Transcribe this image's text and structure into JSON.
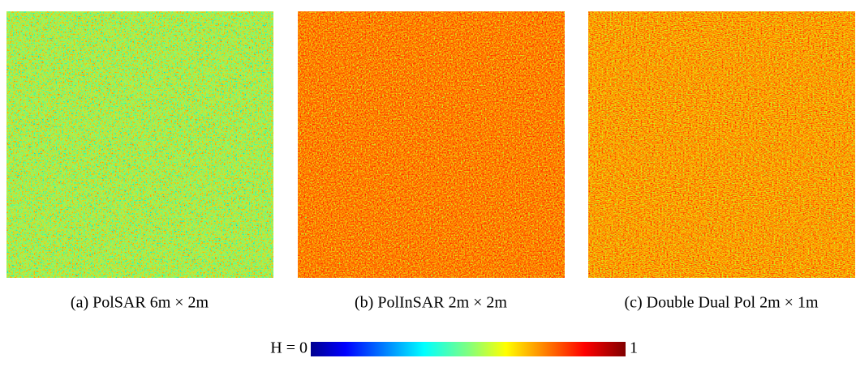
{
  "panels": [
    {
      "caption": "(a)  PolSAR 6m × 2m"
    },
    {
      "caption": "(b)  PolInSAR 2m × 2m"
    },
    {
      "caption": "(c)  Double Dual Pol 2m × 1m"
    }
  ],
  "colorbar": {
    "min_label": "H = 0",
    "max_label": "1"
  }
}
